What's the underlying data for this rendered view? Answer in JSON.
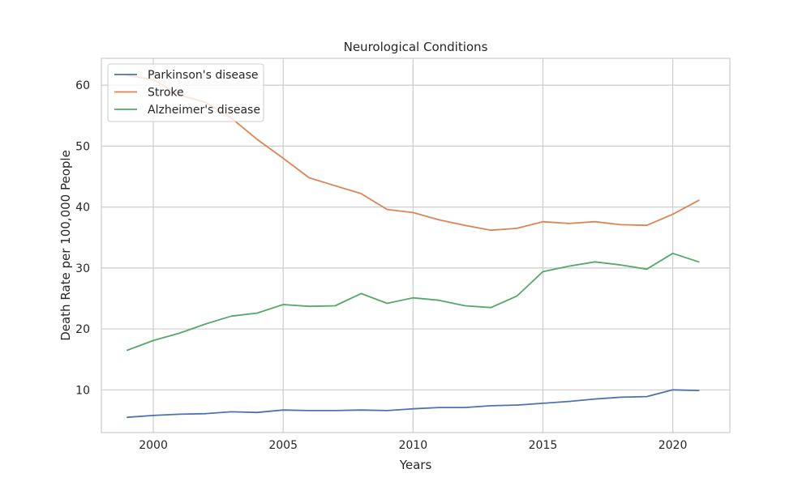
{
  "chart_data": {
    "type": "line",
    "title": "Neurological Conditions",
    "xlabel": "Years",
    "ylabel": "Death Rate per 100,000 People",
    "xlim": [
      1998,
      2022.2
    ],
    "ylim": [
      3,
      64.4
    ],
    "x_ticks": [
      2000,
      2005,
      2010,
      2015,
      2020
    ],
    "y_ticks": [
      10,
      20,
      30,
      40,
      50,
      60
    ],
    "grid": true,
    "legend_position": "upper-left",
    "x": [
      1999,
      2000,
      2001,
      2002,
      2003,
      2004,
      2005,
      2006,
      2007,
      2008,
      2009,
      2010,
      2011,
      2012,
      2013,
      2014,
      2015,
      2016,
      2017,
      2018,
      2019,
      2020,
      2021
    ],
    "series": [
      {
        "name": "Parkinson's disease",
        "color": "#4c72b0",
        "values": [
          5.5,
          5.8,
          6.0,
          6.1,
          6.4,
          6.3,
          6.7,
          6.6,
          6.6,
          6.7,
          6.6,
          6.9,
          7.1,
          7.1,
          7.4,
          7.5,
          7.8,
          8.1,
          8.5,
          8.8,
          8.9,
          10.0,
          9.9
        ]
      },
      {
        "name": "Stroke",
        "color": "#dd8452",
        "values": [
          61.6,
          60.9,
          58.4,
          57.2,
          54.6,
          51.1,
          48.0,
          44.8,
          43.5,
          42.2,
          39.6,
          39.1,
          37.9,
          37.0,
          36.2,
          36.5,
          37.6,
          37.3,
          37.6,
          37.1,
          37.0,
          38.8,
          41.1
        ]
      },
      {
        "name": "Alzheimer's disease",
        "color": "#55a868",
        "values": [
          16.5,
          18.1,
          19.3,
          20.8,
          22.1,
          22.6,
          24.0,
          23.7,
          23.8,
          25.8,
          24.2,
          25.1,
          24.7,
          23.8,
          23.5,
          25.4,
          29.4,
          30.3,
          31.0,
          30.5,
          29.8,
          32.4,
          31.0
        ]
      }
    ],
    "grid_color": "#cccccc",
    "frame_color": "#cccccc"
  }
}
